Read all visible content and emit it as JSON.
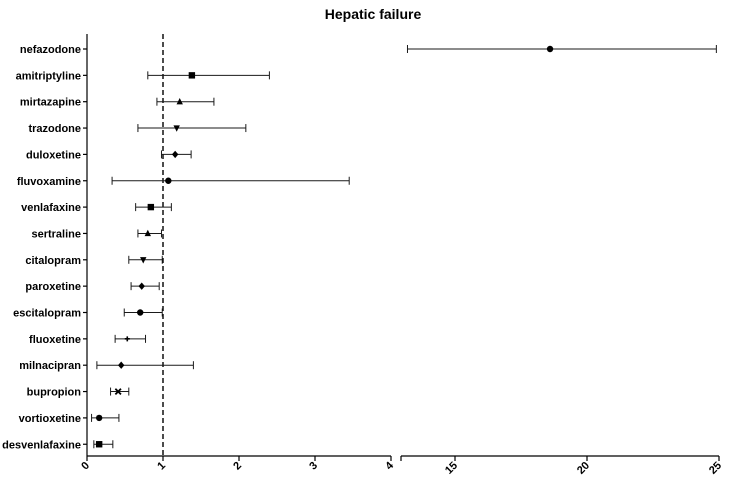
{
  "chart_data": {
    "type": "forest",
    "title": "Hepatic failure",
    "xlabel": "",
    "ylabel": "",
    "reference_line": 1,
    "x_axis_segments": [
      {
        "range": [
          0,
          4
        ],
        "ticks": [
          "0",
          "1",
          "2",
          "3",
          "4"
        ]
      },
      {
        "range": [
          12.5,
          25
        ],
        "ticks": [
          "15",
          "20",
          "25"
        ]
      }
    ],
    "rows": [
      {
        "drug": "nefazodone",
        "estimate": 18.6,
        "lower": 13.2,
        "upper": 24.9,
        "marker": "circle"
      },
      {
        "drug": "amitriptyline",
        "estimate": 1.38,
        "lower": 0.8,
        "upper": 2.4,
        "marker": "square"
      },
      {
        "drug": "mirtazapine",
        "estimate": 1.22,
        "lower": 0.92,
        "upper": 1.67,
        "marker": "triangle-up"
      },
      {
        "drug": "trazodone",
        "estimate": 1.18,
        "lower": 0.67,
        "upper": 2.09,
        "marker": "triangle-down"
      },
      {
        "drug": "duloxetine",
        "estimate": 1.16,
        "lower": 0.98,
        "upper": 1.37,
        "marker": "diamond"
      },
      {
        "drug": "fluvoxamine",
        "estimate": 1.07,
        "lower": 0.33,
        "upper": 3.45,
        "marker": "circle"
      },
      {
        "drug": "venlafaxine",
        "estimate": 0.84,
        "lower": 0.64,
        "upper": 1.11,
        "marker": "square"
      },
      {
        "drug": "sertraline",
        "estimate": 0.8,
        "lower": 0.67,
        "upper": 0.98,
        "marker": "triangle-up"
      },
      {
        "drug": "citalopram",
        "estimate": 0.74,
        "lower": 0.55,
        "upper": 0.99,
        "marker": "triangle-down"
      },
      {
        "drug": "paroxetine",
        "estimate": 0.72,
        "lower": 0.58,
        "upper": 0.95,
        "marker": "diamond"
      },
      {
        "drug": "escitalopram",
        "estimate": 0.7,
        "lower": 0.49,
        "upper": 0.99,
        "marker": "circle"
      },
      {
        "drug": "fluoxetine",
        "estimate": 0.53,
        "lower": 0.37,
        "upper": 0.77,
        "marker": "plus"
      },
      {
        "drug": "milnacipran",
        "estimate": 0.45,
        "lower": 0.13,
        "upper": 1.4,
        "marker": "diamond"
      },
      {
        "drug": "bupropion",
        "estimate": 0.41,
        "lower": 0.31,
        "upper": 0.55,
        "marker": "cross"
      },
      {
        "drug": "vortioxetine",
        "estimate": 0.16,
        "lower": 0.06,
        "upper": 0.42,
        "marker": "circle"
      },
      {
        "drug": "desvenlafaxine",
        "estimate": 0.16,
        "lower": 0.09,
        "upper": 0.34,
        "marker": "square"
      }
    ],
    "grid": false,
    "legend": "none"
  }
}
